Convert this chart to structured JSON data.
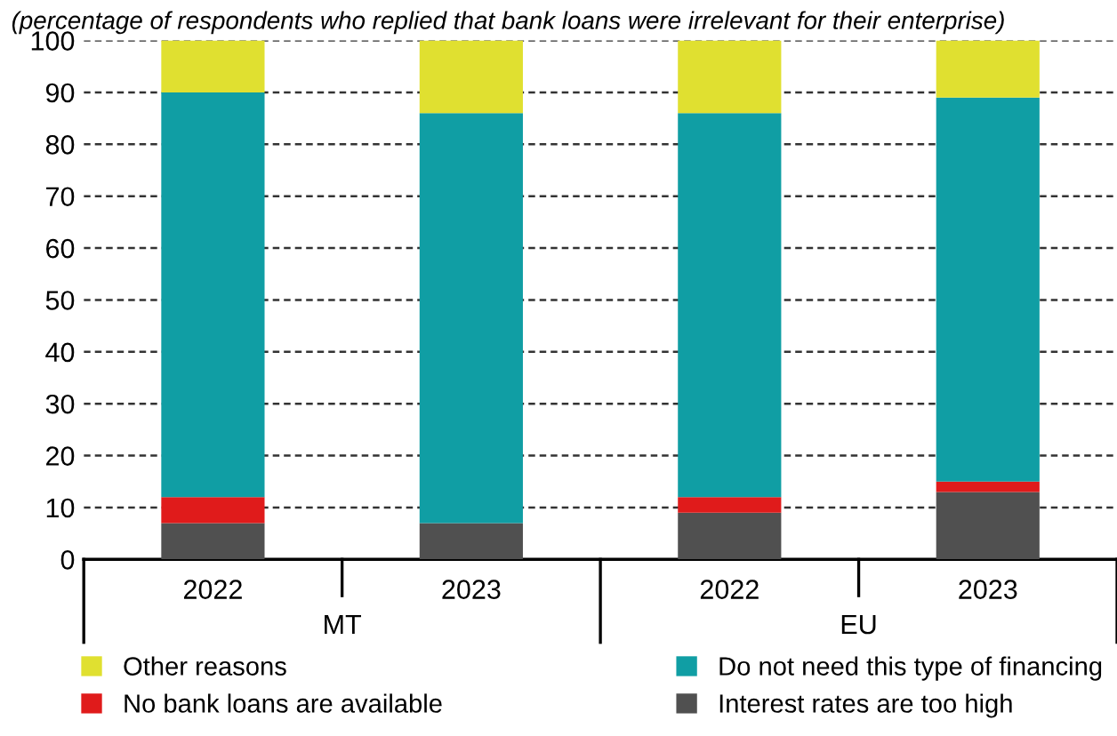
{
  "chart_data": {
    "type": "bar",
    "stacked": true,
    "subtitle": "(percentage of respondents who replied that bank loans were irrelevant for their enterprise)",
    "categories": [
      "2022",
      "2023",
      "2022",
      "2023"
    ],
    "annotations": [
      "MT",
      "EU"
    ],
    "series": [
      {
        "name": "Interest rates are too high",
        "color": "#505050",
        "values": [
          7,
          7,
          9,
          13
        ]
      },
      {
        "name": "No bank loans are available",
        "color": "#e01b1b",
        "values": [
          5,
          0,
          3,
          2
        ]
      },
      {
        "name": "Do not need this type of financing",
        "color": "#109ea4",
        "values": [
          78,
          79,
          74,
          74
        ]
      },
      {
        "name": "Other reasons",
        "color": "#e0e030",
        "values": [
          10,
          14,
          14,
          11
        ]
      }
    ],
    "ylim": [
      0,
      100
    ],
    "yticks": [
      0,
      10,
      20,
      30,
      40,
      50,
      60,
      70,
      80,
      90,
      100
    ],
    "grid": "y",
    "legend": "bottom"
  }
}
